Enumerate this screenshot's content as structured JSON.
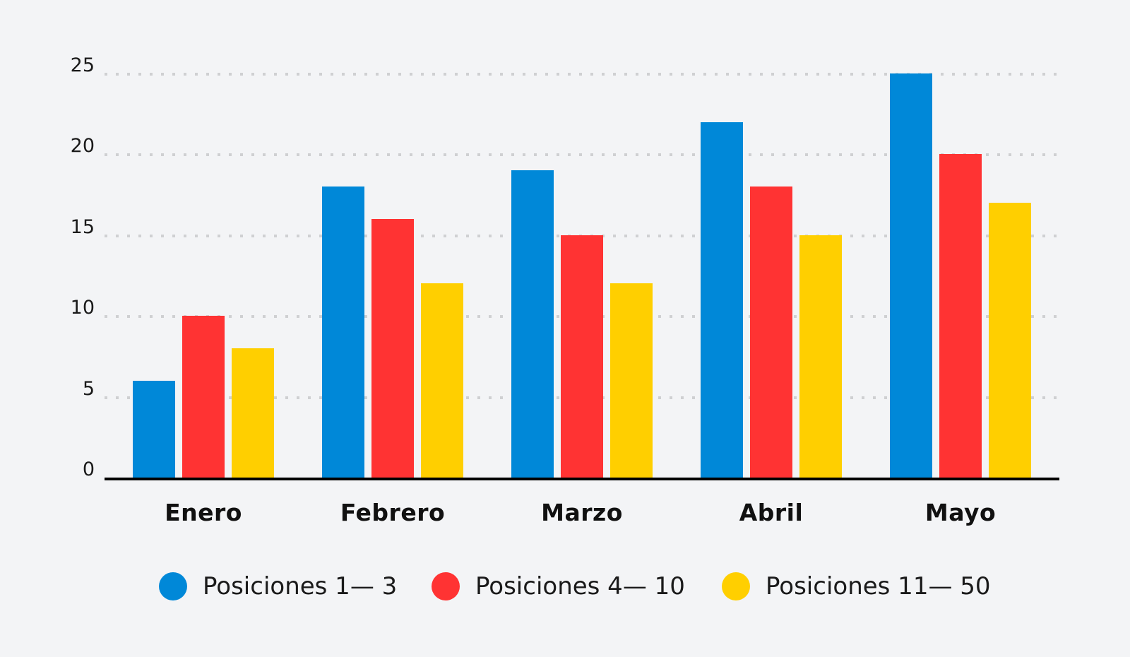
{
  "chart_data": {
    "type": "bar",
    "title": "",
    "xlabel": "",
    "ylabel": "",
    "categories": [
      "Enero",
      "Febrero",
      "Marzo",
      "Abril",
      "Mayo"
    ],
    "series": [
      {
        "name": "Posiciones 1— 3",
        "color": "#0088d8",
        "values": [
          6,
          18,
          19,
          22,
          25
        ]
      },
      {
        "name": "Posiciones 4— 10",
        "color": "#ff3333",
        "values": [
          10,
          16,
          15,
          18,
          20
        ]
      },
      {
        "name": "Posiciones 11— 50",
        "color": "#ffcf00",
        "values": [
          8,
          12,
          12,
          15,
          17
        ]
      }
    ],
    "ylim": [
      0,
      25
    ],
    "yticks": [
      "0",
      "5",
      "10",
      "15",
      "20",
      "25"
    ],
    "grid": true,
    "grid_style": "dotted",
    "legend_position": "bottom"
  },
  "colors": {
    "background": "#f3f4f6",
    "axis": "#000000",
    "grid": "#cfd0d2"
  }
}
